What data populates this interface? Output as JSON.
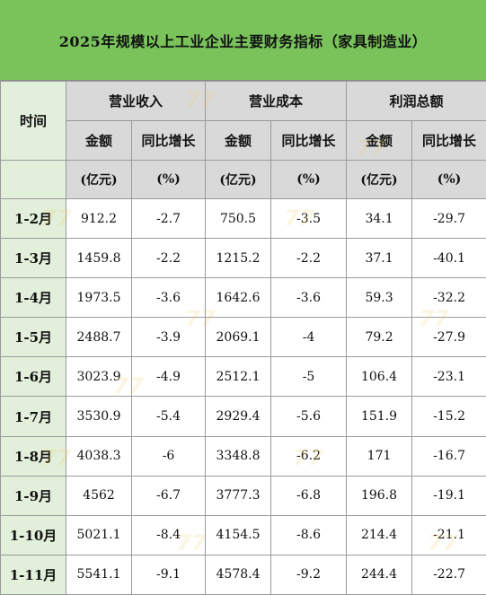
{
  "title": "2025年规模以上工业企业主要财务指标（家具制造业）",
  "headers": {
    "time": "时间",
    "groups": [
      "营业收入",
      "营业成本",
      "利润总额"
    ],
    "sub_amount": "金额",
    "sub_growth": "同比增长",
    "unit_amount": "(亿元)",
    "unit_growth": "(%)"
  },
  "rows": [
    {
      "period": "1-2月",
      "rev": "912.2",
      "rev_g": "-2.7",
      "cost": "750.5",
      "cost_g": "-3.5",
      "profit": "34.1",
      "profit_g": "-29.7"
    },
    {
      "period": "1-3月",
      "rev": "1459.8",
      "rev_g": "-2.2",
      "cost": "1215.2",
      "cost_g": "-2.2",
      "profit": "37.1",
      "profit_g": "-40.1"
    },
    {
      "period": "1-4月",
      "rev": "1973.5",
      "rev_g": "-3.6",
      "cost": "1642.6",
      "cost_g": "-3.6",
      "profit": "59.3",
      "profit_g": "-32.2"
    },
    {
      "period": "1-5月",
      "rev": "2488.7",
      "rev_g": "-3.9",
      "cost": "2069.1",
      "cost_g": "-4",
      "profit": "79.2",
      "profit_g": "-27.9"
    },
    {
      "period": "1-6月",
      "rev": "3023.9",
      "rev_g": "-4.9",
      "cost": "2512.1",
      "cost_g": "-5",
      "profit": "106.4",
      "profit_g": "-23.1"
    },
    {
      "period": "1-7月",
      "rev": "3530.9",
      "rev_g": "-5.4",
      "cost": "2929.4",
      "cost_g": "-5.6",
      "profit": "151.9",
      "profit_g": "-15.2"
    },
    {
      "period": "1-8月",
      "rev": "4038.3",
      "rev_g": "-6",
      "cost": "3348.8",
      "cost_g": "-6.2",
      "profit": "171",
      "profit_g": "-16.7"
    },
    {
      "period": "1-9月",
      "rev": "4562",
      "rev_g": "-6.7",
      "cost": "3777.3",
      "cost_g": "-6.8",
      "profit": "196.8",
      "profit_g": "-19.1"
    },
    {
      "period": "1-10月",
      "rev": "5021.1",
      "rev_g": "-8.4",
      "cost": "4154.5",
      "cost_g": "-8.6",
      "profit": "214.4",
      "profit_g": "-21.1"
    },
    {
      "period": "1-11月",
      "rev": "5541.1",
      "rev_g": "-9.1",
      "cost": "4578.4",
      "cost_g": "-9.2",
      "profit": "244.4",
      "profit_g": "-22.7"
    }
  ],
  "colors": {
    "title_bg": "#79c35a",
    "header_bg": "#d9d9d9",
    "period_bg": "#e2efda",
    "border": "#9a9a9a"
  },
  "watermark": "77"
}
